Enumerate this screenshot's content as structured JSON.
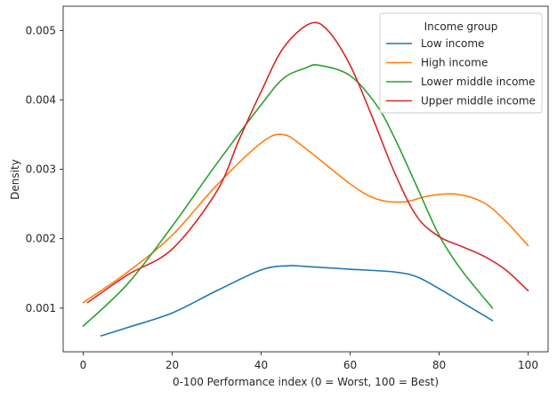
{
  "chart_data": {
    "type": "line",
    "title": "",
    "xlabel": "0-100 Performance index (0 = Worst, 100 = Best)",
    "ylabel": "Density",
    "xlim": [
      -4.5,
      104.5
    ],
    "ylim": [
      0.00037,
      0.00535
    ],
    "xticks": [
      0,
      20,
      40,
      60,
      80,
      100
    ],
    "yticks": [
      0.001,
      0.002,
      0.003,
      0.004,
      0.005
    ],
    "xtick_labels": [
      "0",
      "20",
      "40",
      "60",
      "80",
      "100"
    ],
    "ytick_labels": [
      "0.001",
      "0.002",
      "0.003",
      "0.004",
      "0.005"
    ],
    "grid": false,
    "legend": {
      "title": "Income group",
      "position": "top-right"
    },
    "series": [
      {
        "name": "Low income",
        "color": "#1f77b4",
        "x": [
          4,
          10,
          20,
          30,
          40,
          46,
          50,
          60,
          70,
          75,
          80,
          86,
          92
        ],
        "y": [
          0.0006,
          0.00072,
          0.00093,
          0.00125,
          0.00155,
          0.00161,
          0.0016,
          0.00156,
          0.00152,
          0.00145,
          0.00128,
          0.00105,
          0.00082
        ]
      },
      {
        "name": "High income",
        "color": "#ff7f0e",
        "x": [
          0,
          10,
          20,
          30,
          40,
          45,
          50,
          60,
          66,
          72,
          78,
          84,
          90,
          95,
          100
        ],
        "y": [
          0.00108,
          0.00152,
          0.00205,
          0.00277,
          0.00338,
          0.0035,
          0.0033,
          0.00279,
          0.00257,
          0.00253,
          0.00262,
          0.00264,
          0.00252,
          0.00225,
          0.0019
        ]
      },
      {
        "name": "Lower middle income",
        "color": "#2ca02c",
        "x": [
          0,
          10,
          20,
          30,
          40,
          45,
          50,
          53,
          60,
          66,
          70,
          75,
          80,
          85,
          92
        ],
        "y": [
          0.00074,
          0.00135,
          0.00218,
          0.00308,
          0.00393,
          0.00431,
          0.00446,
          0.0045,
          0.00435,
          0.00392,
          0.00345,
          0.00275,
          0.00205,
          0.00155,
          0.001
        ]
      },
      {
        "name": "Upper middle income",
        "color": "#d62728",
        "x": [
          1,
          10,
          20,
          30,
          35,
          40,
          45,
          51,
          55,
          60,
          65,
          70,
          75,
          80,
          85,
          90,
          95,
          100
        ],
        "y": [
          0.00108,
          0.00148,
          0.00185,
          0.00268,
          0.00342,
          0.00412,
          0.00475,
          0.0051,
          0.005,
          0.0045,
          0.00375,
          0.00295,
          0.00232,
          0.00203,
          0.00189,
          0.00175,
          0.00155,
          0.00125
        ]
      }
    ]
  }
}
